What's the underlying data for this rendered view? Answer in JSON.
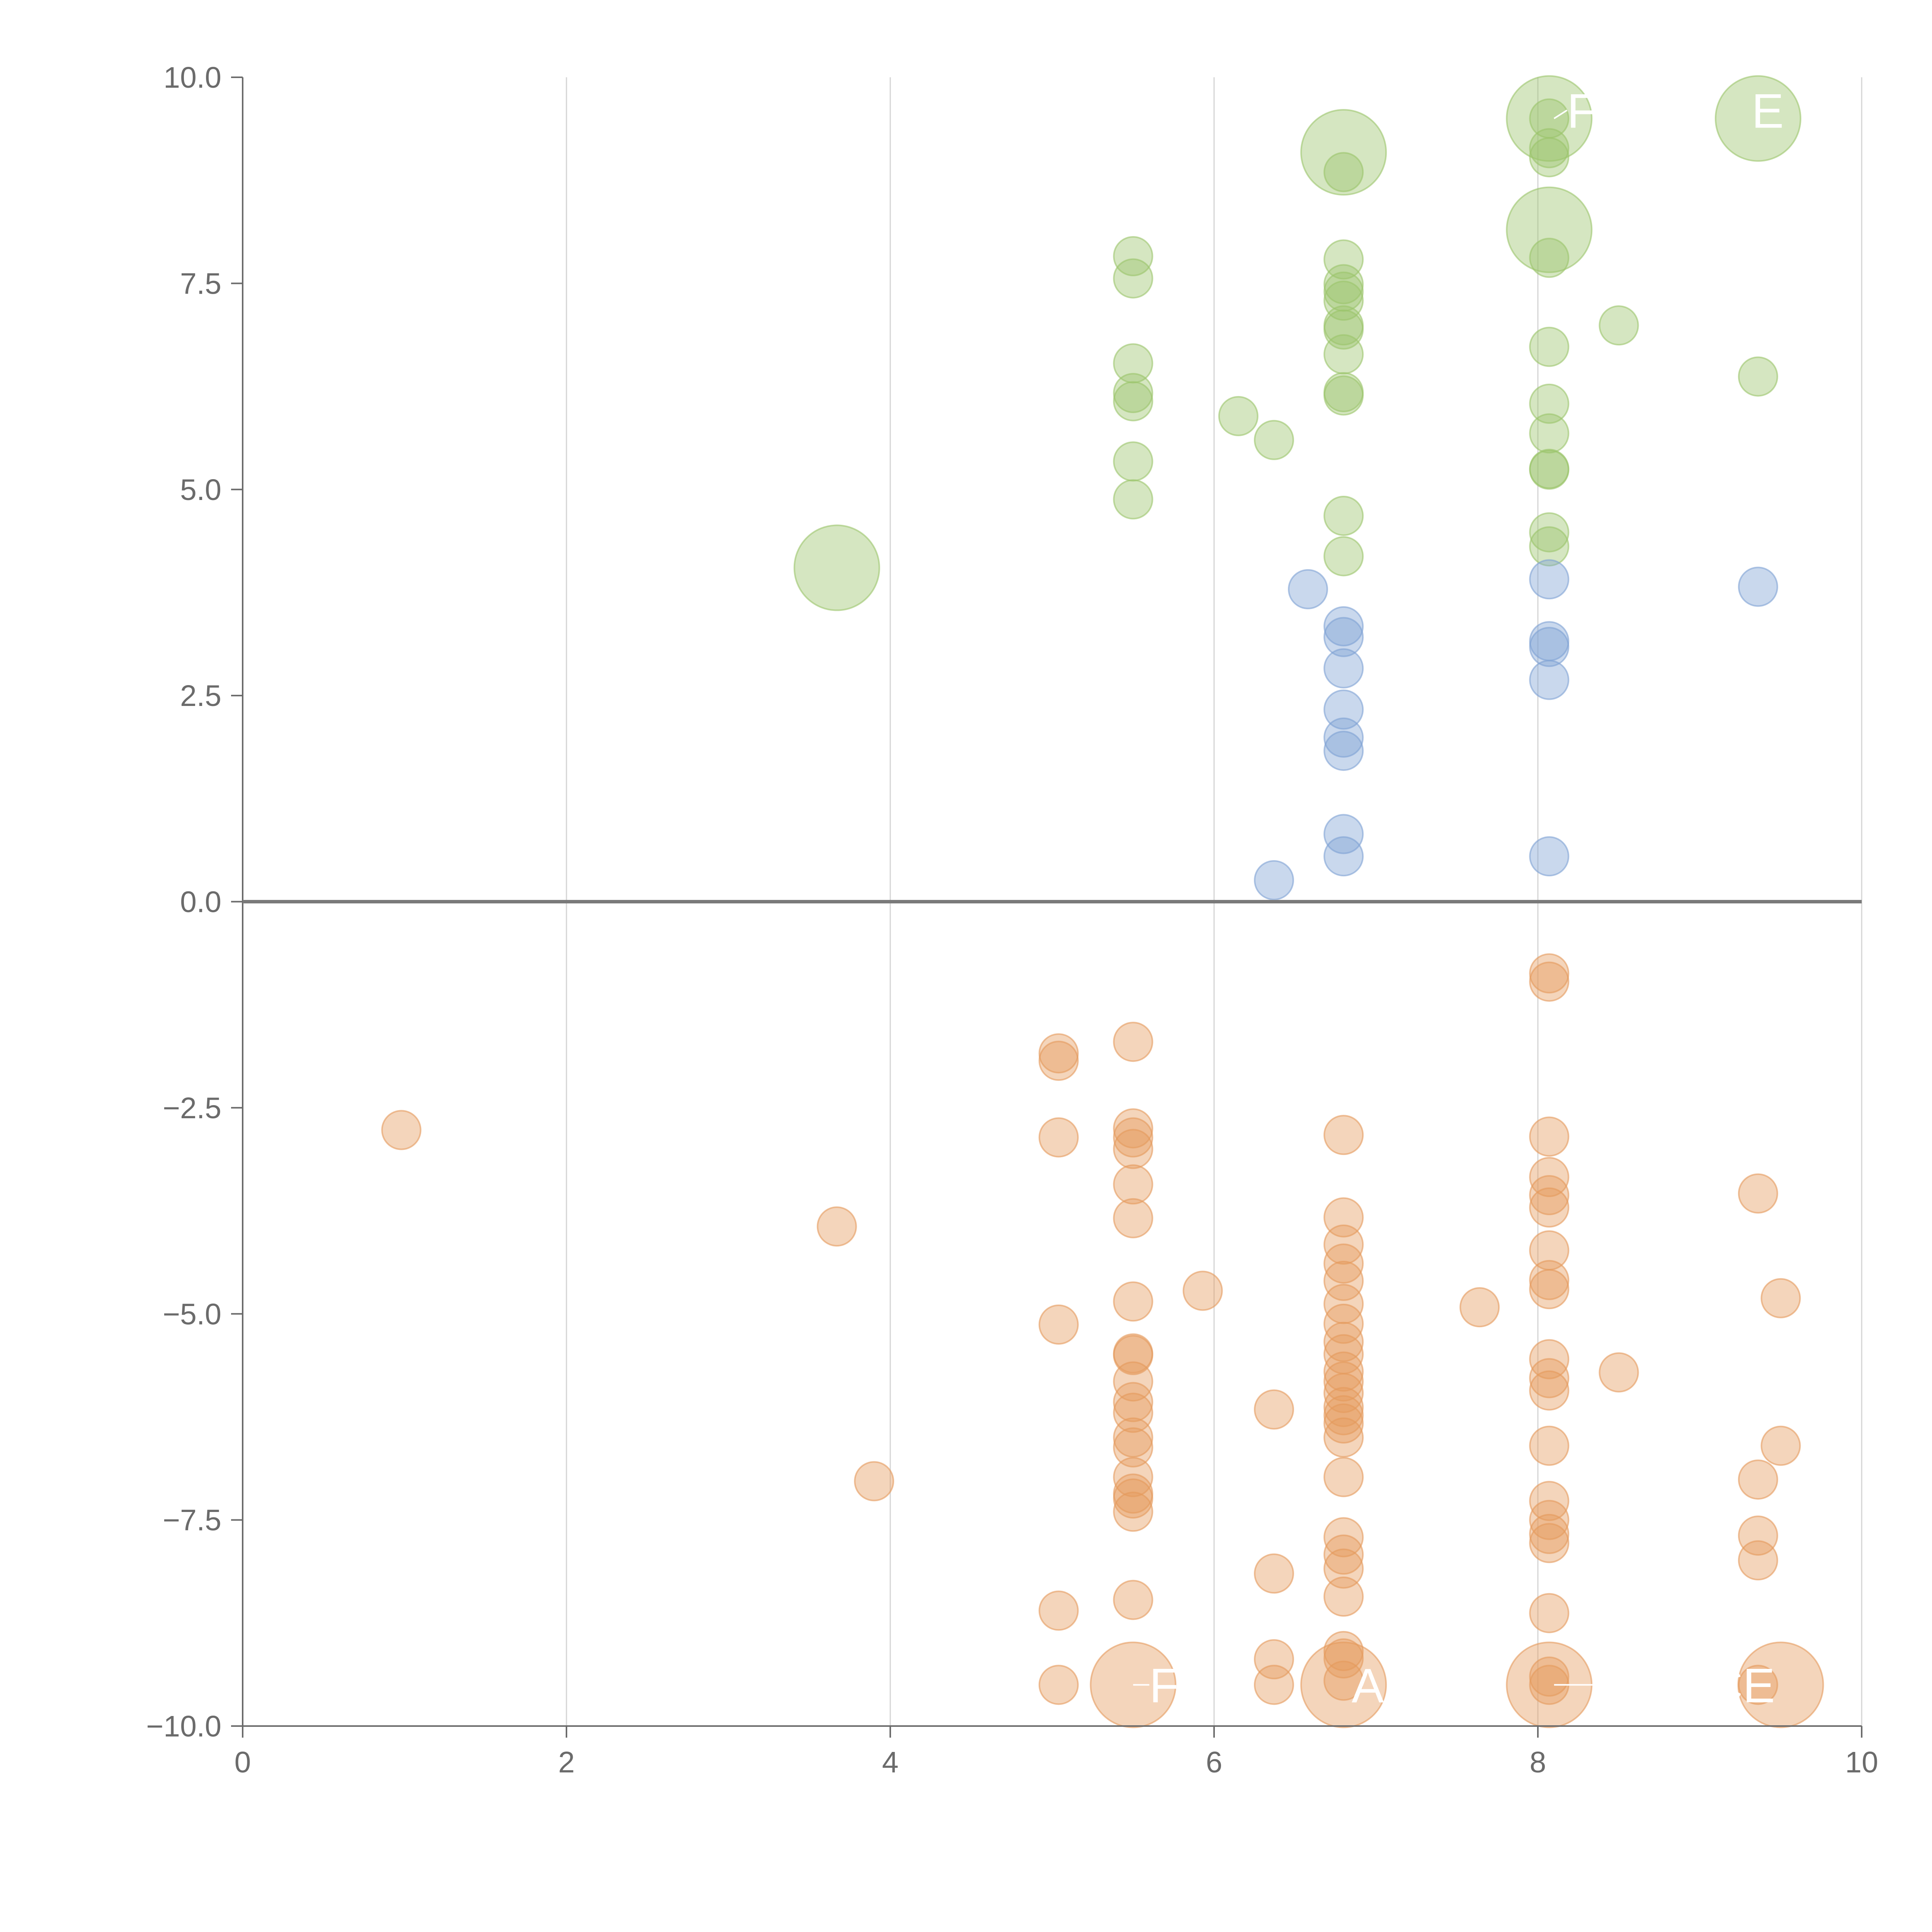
{
  "chart_data": {
    "type": "scatter",
    "title": "",
    "xlabel": "",
    "ylabel": "",
    "xlim": [
      0,
      10
    ],
    "ylim": [
      -10,
      10
    ],
    "x_ticks": [
      0,
      2,
      4,
      6,
      8,
      10
    ],
    "y_ticks": [
      -10,
      -7.5,
      -5,
      -2.5,
      0,
      2.5,
      5,
      7.5,
      10
    ],
    "x_tick_labels": [
      "0",
      "2",
      "4",
      "6",
      "8",
      "10"
    ],
    "y_tick_labels": [
      "−10.0",
      "−7.5",
      "−5.0",
      "−2.5",
      "0.0",
      "2.5",
      "5.0",
      "7.5",
      "10.0"
    ],
    "grid": {
      "x": true,
      "y": false
    },
    "zero_line": true,
    "series": [
      {
        "color": "#9bc46b",
        "points": [
          {
            "x": 5.5,
            "y": 7.83,
            "r": 1
          },
          {
            "x": 5.5,
            "y": 7.56,
            "r": 1
          },
          {
            "x": 5.5,
            "y": 6.53,
            "r": 1
          },
          {
            "x": 5.5,
            "y": 6.17,
            "r": 1
          },
          {
            "x": 5.5,
            "y": 6.07,
            "r": 1
          },
          {
            "x": 5.5,
            "y": 5.34,
            "r": 1
          },
          {
            "x": 5.5,
            "y": 4.88,
            "r": 1
          },
          {
            "x": 6.15,
            "y": 5.89,
            "r": 1
          },
          {
            "x": 6.37,
            "y": 5.6,
            "r": 1
          },
          {
            "x": 6.8,
            "y": 8.85,
            "r": 1
          },
          {
            "x": 6.8,
            "y": 7.79,
            "r": 1
          },
          {
            "x": 6.8,
            "y": 7.49,
            "r": 1
          },
          {
            "x": 6.8,
            "y": 7.4,
            "r": 1
          },
          {
            "x": 6.8,
            "y": 7.29,
            "r": 1
          },
          {
            "x": 6.8,
            "y": 6.99,
            "r": 1
          },
          {
            "x": 6.8,
            "y": 6.94,
            "r": 1
          },
          {
            "x": 6.8,
            "y": 6.64,
            "r": 1
          },
          {
            "x": 6.8,
            "y": 6.18,
            "r": 1
          },
          {
            "x": 6.8,
            "y": 6.14,
            "r": 1
          },
          {
            "x": 6.8,
            "y": 4.68,
            "r": 1
          },
          {
            "x": 6.8,
            "y": 4.19,
            "r": 1
          },
          {
            "x": 8.07,
            "y": 9.5,
            "r": 1
          },
          {
            "x": 8.07,
            "y": 9.14,
            "r": 1
          },
          {
            "x": 8.07,
            "y": 9.03,
            "r": 1
          },
          {
            "x": 8.07,
            "y": 7.81,
            "r": 1
          },
          {
            "x": 8.07,
            "y": 6.73,
            "r": 1
          },
          {
            "x": 8.07,
            "y": 6.04,
            "r": 1
          },
          {
            "x": 8.07,
            "y": 5.68,
            "r": 1
          },
          {
            "x": 8.07,
            "y": 5.25,
            "r": 1
          },
          {
            "x": 8.07,
            "y": 5.24,
            "r": 1
          },
          {
            "x": 8.07,
            "y": 4.48,
            "r": 1
          },
          {
            "x": 8.07,
            "y": 4.31,
            "r": 1
          },
          {
            "x": 8.5,
            "y": 6.99,
            "r": 1
          },
          {
            "x": 9.36,
            "y": 6.37,
            "r": 1
          },
          {
            "x": 3.67,
            "y": 4.05,
            "r": 2.2
          },
          {
            "x": 6.8,
            "y": 9.09,
            "r": 2.2
          },
          {
            "x": 8.07,
            "y": 9.5,
            "r": 2.2
          },
          {
            "x": 8.07,
            "y": 8.15,
            "r": 2.2
          },
          {
            "x": 9.36,
            "y": 9.5,
            "r": 2.2
          }
        ]
      },
      {
        "color": "#7ea1d4",
        "points": [
          {
            "x": 6.37,
            "y": 0.26,
            "r": 1
          },
          {
            "x": 6.58,
            "y": 3.79,
            "r": 1
          },
          {
            "x": 6.8,
            "y": 3.34,
            "r": 1
          },
          {
            "x": 6.8,
            "y": 3.21,
            "r": 1
          },
          {
            "x": 6.8,
            "y": 2.83,
            "r": 1
          },
          {
            "x": 6.8,
            "y": 2.33,
            "r": 1
          },
          {
            "x": 6.8,
            "y": 1.99,
            "r": 1
          },
          {
            "x": 6.8,
            "y": 1.83,
            "r": 1
          },
          {
            "x": 6.8,
            "y": 0.82,
            "r": 1
          },
          {
            "x": 6.8,
            "y": 0.55,
            "r": 1
          },
          {
            "x": 8.07,
            "y": 3.91,
            "r": 1
          },
          {
            "x": 8.07,
            "y": 3.16,
            "r": 1
          },
          {
            "x": 8.07,
            "y": 3.09,
            "r": 1
          },
          {
            "x": 8.07,
            "y": 2.69,
            "r": 1
          },
          {
            "x": 8.07,
            "y": 0.55,
            "r": 1
          },
          {
            "x": 9.36,
            "y": 3.82,
            "r": 1
          }
        ]
      },
      {
        "color": "#e59a5c",
        "points": [
          {
            "x": 0.98,
            "y": -2.77,
            "r": 1
          },
          {
            "x": 3.67,
            "y": -3.94,
            "r": 1
          },
          {
            "x": 3.9,
            "y": -7.03,
            "r": 1
          },
          {
            "x": 5.04,
            "y": -1.84,
            "r": 1
          },
          {
            "x": 5.04,
            "y": -1.93,
            "r": 1
          },
          {
            "x": 5.04,
            "y": -2.86,
            "r": 1
          },
          {
            "x": 5.04,
            "y": -5.13,
            "r": 1
          },
          {
            "x": 5.04,
            "y": -8.6,
            "r": 1
          },
          {
            "x": 5.04,
            "y": -9.5,
            "r": 1
          },
          {
            "x": 5.5,
            "y": -1.7,
            "r": 1
          },
          {
            "x": 5.5,
            "y": -2.75,
            "r": 1
          },
          {
            "x": 5.5,
            "y": -2.86,
            "r": 1
          },
          {
            "x": 5.5,
            "y": -3.0,
            "r": 1
          },
          {
            "x": 5.5,
            "y": -3.43,
            "r": 1
          },
          {
            "x": 5.5,
            "y": -3.84,
            "r": 1
          },
          {
            "x": 5.5,
            "y": -4.85,
            "r": 1
          },
          {
            "x": 5.5,
            "y": -5.48,
            "r": 1
          },
          {
            "x": 5.5,
            "y": -5.5,
            "r": 1
          },
          {
            "x": 5.5,
            "y": -5.82,
            "r": 1
          },
          {
            "x": 5.5,
            "y": -6.07,
            "r": 1
          },
          {
            "x": 5.5,
            "y": -6.2,
            "r": 1
          },
          {
            "x": 5.5,
            "y": -6.5,
            "r": 1
          },
          {
            "x": 5.5,
            "y": -6.62,
            "r": 1
          },
          {
            "x": 5.5,
            "y": -6.98,
            "r": 1
          },
          {
            "x": 5.5,
            "y": -7.18,
            "r": 1
          },
          {
            "x": 5.5,
            "y": -7.24,
            "r": 1
          },
          {
            "x": 5.5,
            "y": -7.4,
            "r": 1
          },
          {
            "x": 5.5,
            "y": -8.47,
            "r": 1
          },
          {
            "x": 5.93,
            "y": -4.72,
            "r": 1
          },
          {
            "x": 6.37,
            "y": -6.16,
            "r": 1
          },
          {
            "x": 6.37,
            "y": -8.15,
            "r": 1
          },
          {
            "x": 6.37,
            "y": -9.19,
            "r": 1
          },
          {
            "x": 6.37,
            "y": -9.5,
            "r": 1
          },
          {
            "x": 6.8,
            "y": -2.83,
            "r": 1
          },
          {
            "x": 6.8,
            "y": -3.83,
            "r": 1
          },
          {
            "x": 6.8,
            "y": -4.16,
            "r": 1
          },
          {
            "x": 6.8,
            "y": -4.39,
            "r": 1
          },
          {
            "x": 6.8,
            "y": -4.6,
            "r": 1
          },
          {
            "x": 6.8,
            "y": -4.88,
            "r": 1
          },
          {
            "x": 6.8,
            "y": -5.12,
            "r": 1
          },
          {
            "x": 6.8,
            "y": -5.34,
            "r": 1
          },
          {
            "x": 6.8,
            "y": -5.49,
            "r": 1
          },
          {
            "x": 6.8,
            "y": -5.7,
            "r": 1
          },
          {
            "x": 6.8,
            "y": -5.82,
            "r": 1
          },
          {
            "x": 6.8,
            "y": -5.96,
            "r": 1
          },
          {
            "x": 6.8,
            "y": -6.13,
            "r": 1
          },
          {
            "x": 6.8,
            "y": -6.23,
            "r": 1
          },
          {
            "x": 6.8,
            "y": -6.33,
            "r": 1
          },
          {
            "x": 6.8,
            "y": -6.5,
            "r": 1
          },
          {
            "x": 6.8,
            "y": -6.98,
            "r": 1
          },
          {
            "x": 6.8,
            "y": -7.71,
            "r": 1
          },
          {
            "x": 6.8,
            "y": -7.92,
            "r": 1
          },
          {
            "x": 6.8,
            "y": -8.09,
            "r": 1
          },
          {
            "x": 6.8,
            "y": -8.43,
            "r": 1
          },
          {
            "x": 6.8,
            "y": -9.09,
            "r": 1
          },
          {
            "x": 6.8,
            "y": -9.18,
            "r": 1
          },
          {
            "x": 6.8,
            "y": -9.45,
            "r": 1
          },
          {
            "x": 7.64,
            "y": -4.92,
            "r": 1
          },
          {
            "x": 8.07,
            "y": -0.87,
            "r": 1
          },
          {
            "x": 8.07,
            "y": -0.97,
            "r": 1
          },
          {
            "x": 8.07,
            "y": -2.85,
            "r": 1
          },
          {
            "x": 8.07,
            "y": -3.34,
            "r": 1
          },
          {
            "x": 8.07,
            "y": -3.56,
            "r": 1
          },
          {
            "x": 8.07,
            "y": -3.71,
            "r": 1
          },
          {
            "x": 8.07,
            "y": -4.23,
            "r": 1
          },
          {
            "x": 8.07,
            "y": -4.59,
            "r": 1
          },
          {
            "x": 8.07,
            "y": -4.7,
            "r": 1
          },
          {
            "x": 8.07,
            "y": -5.55,
            "r": 1
          },
          {
            "x": 8.07,
            "y": -5.78,
            "r": 1
          },
          {
            "x": 8.07,
            "y": -5.93,
            "r": 1
          },
          {
            "x": 8.07,
            "y": -6.6,
            "r": 1
          },
          {
            "x": 8.07,
            "y": -7.27,
            "r": 1
          },
          {
            "x": 8.07,
            "y": -7.5,
            "r": 1
          },
          {
            "x": 8.07,
            "y": -7.67,
            "r": 1
          },
          {
            "x": 8.07,
            "y": -7.78,
            "r": 1
          },
          {
            "x": 8.07,
            "y": -8.63,
            "r": 1
          },
          {
            "x": 8.07,
            "y": -9.4,
            "r": 1
          },
          {
            "x": 8.07,
            "y": -9.5,
            "r": 1
          },
          {
            "x": 8.5,
            "y": -5.71,
            "r": 1
          },
          {
            "x": 9.36,
            "y": -3.54,
            "r": 1
          },
          {
            "x": 9.36,
            "y": -7.01,
            "r": 1
          },
          {
            "x": 9.36,
            "y": -7.69,
            "r": 1
          },
          {
            "x": 9.36,
            "y": -7.99,
            "r": 1
          },
          {
            "x": 9.36,
            "y": -9.5,
            "r": 1
          },
          {
            "x": 9.5,
            "y": -4.81,
            "r": 1
          },
          {
            "x": 9.5,
            "y": -6.6,
            "r": 1
          },
          {
            "x": 5.5,
            "y": -9.5,
            "r": 2.2
          },
          {
            "x": 6.8,
            "y": -9.5,
            "r": 2.2
          },
          {
            "x": 8.07,
            "y": -9.5,
            "r": 2.2
          },
          {
            "x": 9.5,
            "y": -9.5,
            "r": 2.2
          }
        ]
      }
    ],
    "annotations": [
      {
        "text": "F",
        "x": 5.6,
        "y": -9.5,
        "px": 5.5,
        "py": -9.5
      },
      {
        "text": "AN",
        "x": 6.85,
        "y": -9.5,
        "px": 6.85,
        "py": -9.5
      },
      {
        "text": "CE",
        "x": 9.05,
        "y": -9.5,
        "px": 8.1,
        "py": -9.5
      },
      {
        "text": "F",
        "x": 8.18,
        "y": 9.6,
        "px": 8.1,
        "py": 9.5
      },
      {
        "text": "E",
        "x": 9.32,
        "y": 9.6,
        "px": 9.32,
        "py": 9.6
      }
    ]
  }
}
